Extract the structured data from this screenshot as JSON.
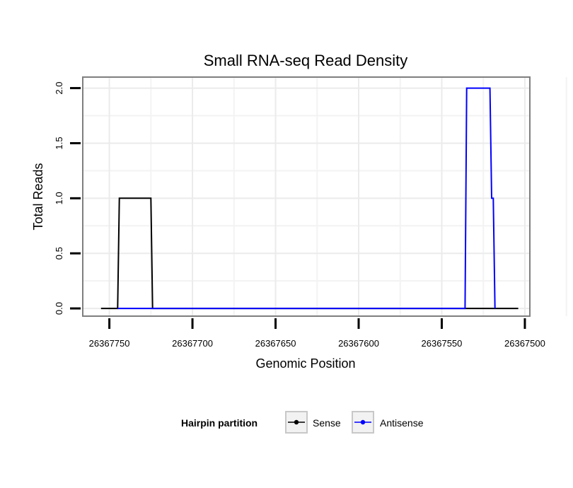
{
  "chart_data": {
    "type": "line",
    "title": "Small RNA-seq Read Density",
    "xlabel": "Genomic Position",
    "ylabel": "Total Reads",
    "x_reversed": true,
    "xlim": [
      26367766,
      26367497
    ],
    "ylim": [
      -0.07,
      2.1
    ],
    "xticks": [
      26367750,
      26367700,
      26367650,
      26367600,
      26367550,
      26367500
    ],
    "xtick_labels": [
      "26367750",
      "26367700",
      "26367650",
      "26367600",
      "26367550",
      "26367500"
    ],
    "yticks": [
      0.0,
      0.5,
      1.0,
      1.5,
      2.0
    ],
    "ytick_labels": [
      "0.0",
      "0.5",
      "1.0",
      "1.5",
      "2.0"
    ],
    "grid": true,
    "legend": {
      "title": "Hairpin partition",
      "placement": "bottom"
    },
    "series": [
      {
        "name": "Sense",
        "color": "#000000",
        "x": [
          26367755,
          26367745,
          26367744,
          26367725,
          26367724,
          26367504
        ],
        "y": [
          0,
          0,
          1,
          1,
          0,
          0
        ]
      },
      {
        "name": "Antisense",
        "color": "#0000ff",
        "x": [
          26367745,
          26367724,
          26367536,
          26367535,
          26367521,
          26367520,
          26367519,
          26367518
        ],
        "y": [
          0,
          0,
          0,
          2,
          2,
          1,
          1,
          0
        ]
      }
    ]
  }
}
